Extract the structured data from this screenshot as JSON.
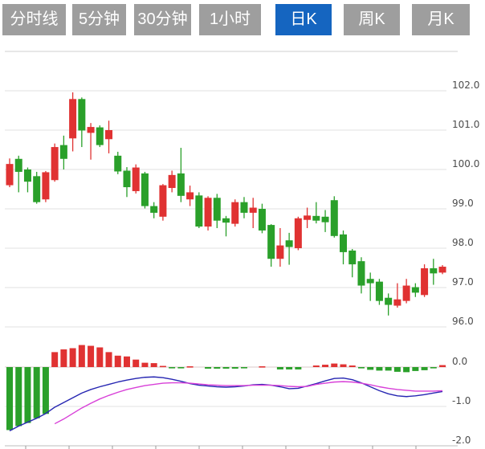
{
  "toolbar": {
    "tabs": [
      {
        "label": "分时线",
        "active": false
      },
      {
        "label": "5分钟",
        "active": false
      },
      {
        "label": "30分钟",
        "active": false
      },
      {
        "label": "1小时",
        "active": false
      },
      {
        "label": "日K",
        "active": true
      },
      {
        "label": "周K",
        "active": false
      },
      {
        "label": "月K",
        "active": false
      }
    ],
    "active_color": "#1565c0",
    "inactive_color": "#9e9e9e"
  },
  "chart_data": {
    "type": "candlestick",
    "subchart": "macd",
    "up_color": "#e03232",
    "down_color": "#2aa02a",
    "grid": true,
    "legend_position": "none",
    "main_panel": {
      "y_ticks": [
        "102.0",
        "101.0",
        "100.0",
        "99.0",
        "98.0",
        "97.0",
        "96.0"
      ],
      "y_values": [
        102.0,
        101.0,
        100.0,
        99.0,
        98.0,
        97.0,
        96.0
      ],
      "ylim": [
        95.9,
        103.0
      ],
      "candle_format": [
        "open",
        "high",
        "low",
        "close"
      ],
      "candles": [
        [
          99.6,
          100.28,
          99.55,
          100.14
        ],
        [
          100.27,
          100.35,
          99.42,
          99.94
        ],
        [
          100.0,
          100.05,
          99.42,
          99.69
        ],
        [
          99.83,
          99.94,
          99.13,
          99.17
        ],
        [
          99.24,
          99.96,
          99.17,
          99.93
        ],
        [
          99.73,
          100.66,
          99.69,
          100.57
        ],
        [
          100.62,
          100.86,
          100.0,
          100.27
        ],
        [
          100.79,
          101.96,
          100.46,
          101.79
        ],
        [
          101.79,
          101.83,
          100.57,
          100.99
        ],
        [
          100.93,
          101.18,
          100.25,
          101.08
        ],
        [
          101.07,
          101.12,
          100.57,
          100.62
        ],
        [
          100.77,
          101.24,
          100.41,
          101.0
        ],
        [
          100.35,
          100.45,
          99.88,
          99.95
        ],
        [
          99.97,
          100.06,
          99.3,
          99.55
        ],
        [
          99.45,
          100.13,
          99.39,
          100.05
        ],
        [
          99.9,
          99.94,
          99.01,
          99.07
        ],
        [
          99.07,
          99.17,
          98.76,
          98.9
        ],
        [
          98.8,
          99.63,
          98.7,
          99.6
        ],
        [
          99.53,
          99.97,
          99.42,
          99.86
        ],
        [
          99.9,
          100.55,
          99.17,
          99.33
        ],
        [
          99.24,
          99.59,
          99.07,
          99.42
        ],
        [
          99.34,
          99.42,
          98.51,
          98.55
        ],
        [
          98.55,
          99.32,
          98.45,
          99.28
        ],
        [
          99.28,
          99.38,
          98.51,
          98.7
        ],
        [
          98.76,
          98.82,
          98.3,
          98.65
        ],
        [
          98.62,
          99.24,
          98.55,
          99.17
        ],
        [
          99.17,
          99.3,
          98.76,
          98.9
        ],
        [
          98.9,
          99.28,
          98.51,
          99.03
        ],
        [
          99.0,
          99.13,
          98.38,
          98.45
        ],
        [
          98.59,
          98.61,
          97.53,
          97.73
        ],
        [
          97.73,
          98.51,
          97.53,
          98.07
        ],
        [
          98.2,
          98.39,
          97.58,
          98.03
        ],
        [
          98.0,
          98.8,
          97.95,
          98.76
        ],
        [
          98.72,
          99.03,
          98.51,
          98.83
        ],
        [
          98.82,
          99.17,
          98.63,
          98.7
        ],
        [
          98.8,
          98.97,
          98.41,
          98.66
        ],
        [
          99.22,
          99.32,
          98.27,
          98.31
        ],
        [
          98.35,
          98.45,
          97.59,
          97.9
        ],
        [
          97.94,
          97.98,
          97.26,
          97.59
        ],
        [
          97.67,
          97.77,
          96.85,
          97.05
        ],
        [
          97.22,
          97.38,
          96.66,
          97.11
        ],
        [
          97.15,
          97.22,
          96.56,
          96.66
        ],
        [
          96.74,
          96.85,
          96.29,
          96.56
        ],
        [
          96.54,
          97.11,
          96.49,
          96.7
        ],
        [
          96.66,
          97.22,
          96.6,
          97.05
        ],
        [
          97.01,
          97.11,
          96.76,
          96.87
        ],
        [
          96.81,
          97.59,
          96.76,
          97.49
        ],
        [
          97.49,
          97.73,
          97.07,
          97.36
        ],
        [
          97.38,
          97.57,
          97.34,
          97.53
        ]
      ]
    },
    "macd_panel": {
      "y_ticks": [
        "0.0",
        "-1.0",
        "-2.0"
      ],
      "y_values": [
        0.0,
        -1.0,
        -2.0
      ],
      "ylim": [
        -2.1,
        0.8
      ],
      "dif_color": "#2626b2",
      "dea_color": "#d840d8",
      "histogram": [
        -1.6,
        -1.5,
        -1.42,
        -1.3,
        -1.19,
        0.38,
        0.45,
        0.48,
        0.56,
        0.54,
        0.5,
        0.38,
        0.29,
        0.27,
        0.19,
        0.11,
        0.1,
        0.03,
        -0.03,
        -0.03,
        0.02,
        0,
        -0.04,
        -0.04,
        -0.04,
        -0.04,
        -0.03,
        0,
        0.02,
        0,
        -0.06,
        -0.06,
        -0.06,
        0,
        0.04,
        0.06,
        0.09,
        0.07,
        0.04,
        -0.03,
        -0.07,
        -0.09,
        -0.09,
        -0.12,
        -0.13,
        -0.1,
        -0.08,
        -0.03,
        0.05
      ],
      "dif": [
        -1.62,
        -1.5,
        -1.4,
        -1.3,
        -1.18,
        -1.02,
        -0.9,
        -0.78,
        -0.66,
        -0.57,
        -0.5,
        -0.44,
        -0.38,
        -0.33,
        -0.29,
        -0.26,
        -0.25,
        -0.27,
        -0.31,
        -0.36,
        -0.42,
        -0.46,
        -0.48,
        -0.5,
        -0.51,
        -0.5,
        -0.48,
        -0.45,
        -0.44,
        -0.46,
        -0.5,
        -0.55,
        -0.54,
        -0.48,
        -0.42,
        -0.35,
        -0.29,
        -0.28,
        -0.32,
        -0.4,
        -0.5,
        -0.6,
        -0.68,
        -0.73,
        -0.75,
        -0.73,
        -0.7,
        -0.66,
        -0.62
      ],
      "dea": [
        null,
        null,
        null,
        null,
        null,
        -1.44,
        -1.32,
        -1.18,
        -1.04,
        -0.92,
        -0.81,
        -0.72,
        -0.64,
        -0.57,
        -0.52,
        -0.47,
        -0.44,
        -0.41,
        -0.4,
        -0.4,
        -0.41,
        -0.43,
        -0.45,
        -0.46,
        -0.47,
        -0.47,
        -0.47,
        -0.46,
        -0.46,
        -0.46,
        -0.47,
        -0.49,
        -0.5,
        -0.49,
        -0.44,
        -0.41,
        -0.38,
        -0.37,
        -0.38,
        -0.41,
        -0.45,
        -0.5,
        -0.54,
        -0.57,
        -0.59,
        -0.61,
        -0.61,
        -0.61,
        -0.6
      ]
    }
  }
}
